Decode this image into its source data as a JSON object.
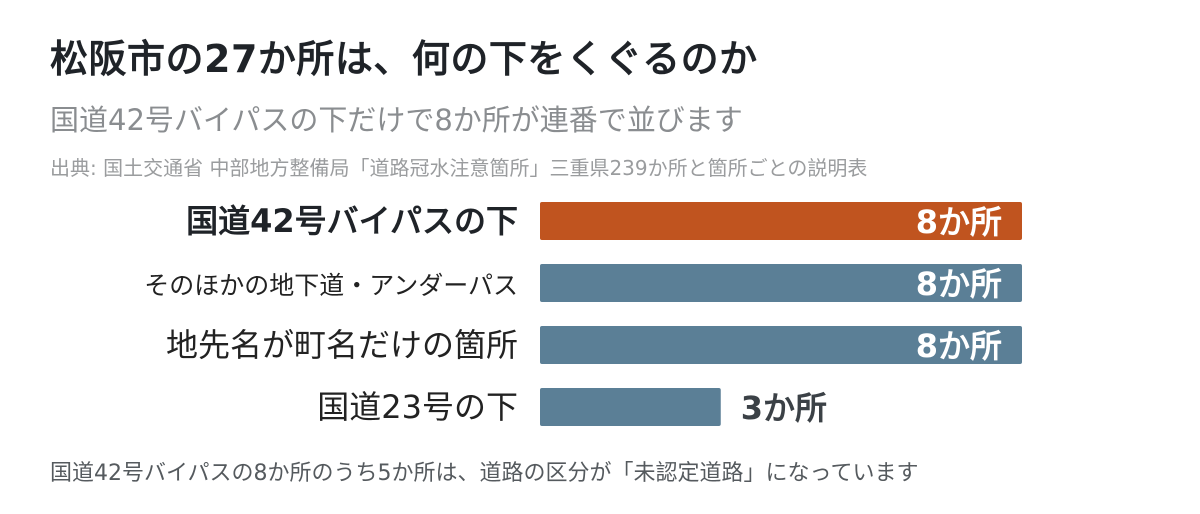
{
  "header": {
    "title": "松阪市の27か所は、何の下をくぐるのか",
    "subtitle": "国道42号バイパスの下だけで8か所が連番で並びます",
    "source": "出典: 国土交通省 中部地方整備局「道路冠水注意箇所」三重県239か所と箇所ごとの説明表"
  },
  "footer": {
    "note": "国道42号バイパスの8か所のうち5か所は、道路の区分が「未認定道路」になっています"
  },
  "chart_data": {
    "type": "bar",
    "orientation": "horizontal",
    "categories": [
      "国道42号バイパスの下",
      "そのほかの地下道・アンダーパス",
      "地先名が町名だけの箇所",
      "国道23号の下"
    ],
    "values": [
      8,
      8,
      8,
      3
    ],
    "labels": [
      "8か所",
      "8か所",
      "8か所",
      "3か所"
    ],
    "highlight_index": 0,
    "xlim": [
      0,
      8
    ],
    "grid": false,
    "legend": "none",
    "colors": {
      "highlight": "#c0541f",
      "default": "#5b7f96",
      "label_outside": "#3b4146",
      "category": "#222222",
      "category_highlight": "#1f2328"
    }
  }
}
